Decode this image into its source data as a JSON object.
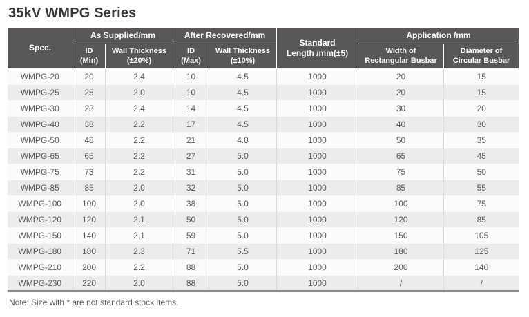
{
  "page": {
    "title": "35kV WMPG Series",
    "note": "Note: Size with * are not standard stock items."
  },
  "table": {
    "header": {
      "spec": "Spec.",
      "as_supplied": "As Supplied/mm",
      "after_recovered": "After Recovered/mm",
      "standard_length": "Standard\nLength /mm(±5)",
      "application": "Application /mm",
      "id_min": "ID\n(Min)",
      "wall_thickness_20": "Wall Thickness\n(±20%)",
      "id_max": "ID\n(Max)",
      "wall_thickness_10": "Wall Thickness\n(±10%)",
      "width_rectangular_busbar": "Width of\nRectangular Busbar",
      "diameter_circular_busbar": "Diameter of\nCircular Busbar"
    },
    "rows": [
      [
        "WMPG-20",
        "20",
        "2.4",
        "10",
        "4.5",
        "1000",
        "20",
        "15"
      ],
      [
        "WMPG-25",
        "25",
        "2.0",
        "10",
        "4.5",
        "1000",
        "20",
        "15"
      ],
      [
        "WMPG-30",
        "28",
        "2.4",
        "14",
        "4.5",
        "1000",
        "30",
        "20"
      ],
      [
        "WMPG-40",
        "38",
        "2.2",
        "17",
        "4.5",
        "1000",
        "40",
        "30"
      ],
      [
        "WMPG-50",
        "48",
        "2.2",
        "21",
        "4.8",
        "1000",
        "50",
        "35"
      ],
      [
        "WMPG-65",
        "65",
        "2.2",
        "27",
        "5.0",
        "1000",
        "65",
        "45"
      ],
      [
        "WMPG-75",
        "73",
        "2.2",
        "31",
        "5.0",
        "1000",
        "75",
        "50"
      ],
      [
        "WMPG-85",
        "85",
        "2.0",
        "32",
        "5.0",
        "1000",
        "85",
        "55"
      ],
      [
        "WMPG-100",
        "100",
        "2.0",
        "38",
        "5.0",
        "1000",
        "100",
        "75"
      ],
      [
        "WMPG-120",
        "120",
        "2.1",
        "50",
        "5.0",
        "1000",
        "120",
        "85"
      ],
      [
        "WMPG-150",
        "140",
        "2.1",
        "59",
        "5.0",
        "1000",
        "150",
        "105"
      ],
      [
        "WMPG-180",
        "180",
        "2.3",
        "71",
        "5.5",
        "1000",
        "180",
        "125"
      ],
      [
        "WMPG-210",
        "200",
        "2.2",
        "88",
        "5.0",
        "1000",
        "200",
        "140"
      ],
      [
        "WMPG-230",
        "220",
        "2.0",
        "88",
        "5.0",
        "1000",
        "/",
        "/"
      ]
    ],
    "colors": {
      "header_background": "#595757",
      "header_text": "#ffffff",
      "row_light": "#fbfbfb",
      "row_dark": "#ececec",
      "body_text": "#595757",
      "bottom_border": "#858585"
    }
  }
}
